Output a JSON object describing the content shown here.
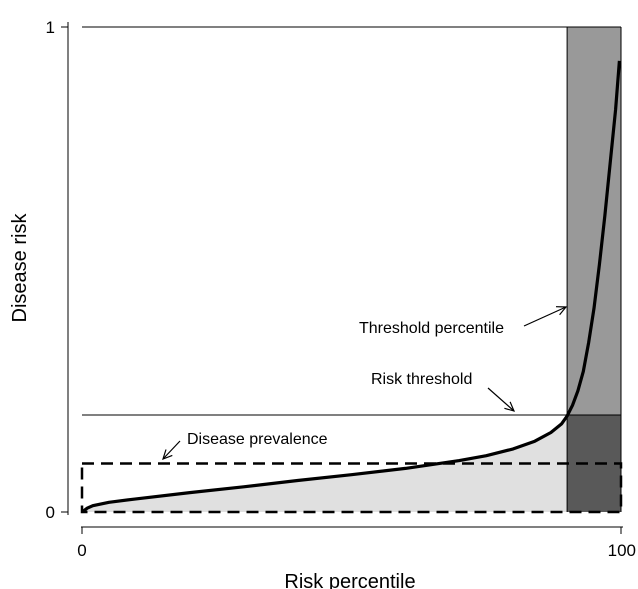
{
  "chart_data": {
    "type": "line",
    "xlabel": "Risk percentile",
    "ylabel": "Disease risk",
    "xlim": [
      0,
      100
    ],
    "ylim": [
      0,
      1
    ],
    "x_ticks": [
      {
        "value": 0,
        "label": "0"
      },
      {
        "value": 100,
        "label": "100"
      }
    ],
    "y_ticks": [
      {
        "value": 0,
        "label": "0"
      },
      {
        "value": 1,
        "label": "1"
      }
    ],
    "grid": false,
    "series": [
      {
        "values": [
          {
            "x": 0,
            "y": 0.0
          },
          {
            "x": 1,
            "y": 0.008
          },
          {
            "x": 2,
            "y": 0.013
          },
          {
            "x": 5,
            "y": 0.02
          },
          {
            "x": 10,
            "y": 0.027
          },
          {
            "x": 20,
            "y": 0.04
          },
          {
            "x": 30,
            "y": 0.052
          },
          {
            "x": 40,
            "y": 0.065
          },
          {
            "x": 50,
            "y": 0.077
          },
          {
            "x": 60,
            "y": 0.09
          },
          {
            "x": 70,
            "y": 0.106
          },
          {
            "x": 75,
            "y": 0.116
          },
          {
            "x": 80,
            "y": 0.13
          },
          {
            "x": 84,
            "y": 0.146
          },
          {
            "x": 87,
            "y": 0.164
          },
          {
            "x": 89,
            "y": 0.182
          },
          {
            "x": 90,
            "y": 0.198
          },
          {
            "x": 91,
            "y": 0.22
          },
          {
            "x": 92,
            "y": 0.25
          },
          {
            "x": 93,
            "y": 0.29
          },
          {
            "x": 94,
            "y": 0.35
          },
          {
            "x": 95,
            "y": 0.42
          },
          {
            "x": 96,
            "y": 0.51
          },
          {
            "x": 97,
            "y": 0.61
          },
          {
            "x": 98,
            "y": 0.72
          },
          {
            "x": 99,
            "y": 0.83
          },
          {
            "x": 99.7,
            "y": 0.93
          }
        ]
      }
    ],
    "risk_threshold": 0.2,
    "threshold_percentile": 90,
    "disease_prevalence": 0.1,
    "annotations": [
      {
        "text": "Threshold percentile",
        "points_to": "threshold-percentile-band"
      },
      {
        "text": "Risk threshold",
        "points_to": "risk-threshold-line"
      },
      {
        "text": "Disease prevalence",
        "points_to": "prevalence-box"
      }
    ],
    "colors": {
      "area_below_curve": "#e0e0e0",
      "band_above_threshold": "#999999",
      "band_below_threshold": "#595959",
      "curve": "#000000"
    }
  }
}
